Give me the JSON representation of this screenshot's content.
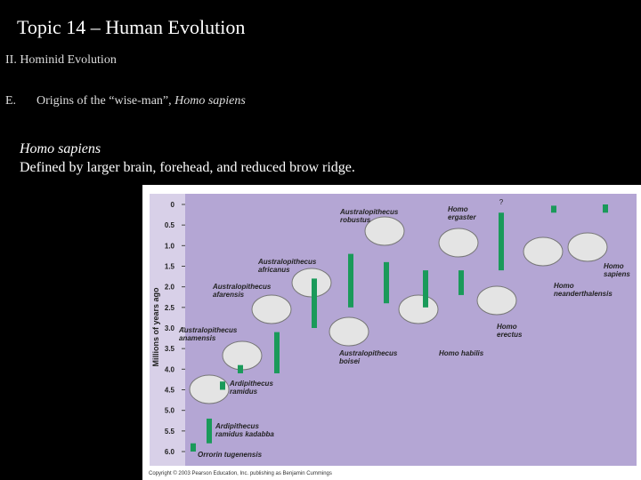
{
  "slide": {
    "title": "Topic 14 – Human Evolution",
    "section": "II. Hominid Evolution",
    "item_marker": "E.",
    "item_text": "Origins of the “wise-man”,",
    "item_italic": "Homo sapiens",
    "body_italic": "Homo sapiens",
    "body_text": "Defined by larger brain, forehead, and reduced brow ridge."
  },
  "figure": {
    "y_label": "Millions of years ago",
    "ylim": [
      0,
      6.0
    ],
    "yticks": [
      0,
      0.5,
      {
        "value": 1.0,
        "label": "1.0"
      },
      1.5,
      {
        "value": 2.0,
        "label": "2.0"
      },
      2.5,
      {
        "value": 3.0,
        "label": "3.0"
      },
      3.5,
      {
        "value": 4.0,
        "label": "4.0"
      },
      4.5,
      {
        "value": 5.0,
        "label": "5.0"
      },
      5.5,
      {
        "value": 6.0,
        "label": "6.0"
      }
    ],
    "bar_color": "#1a9a5a",
    "species": [
      {
        "name": "Orrorin tugenensis",
        "range": [
          5.8,
          6.0
        ]
      },
      {
        "name": "Ardipithecus ramidus kadabba",
        "range": [
          5.2,
          5.8
        ]
      },
      {
        "name": "Ardipithecus ramidus",
        "range": [
          4.3,
          4.5
        ]
      },
      {
        "name": "Australopithecus anamensis",
        "range": [
          3.9,
          4.1
        ]
      },
      {
        "name": "Australopithecus afarensis",
        "range": [
          3.1,
          4.1
        ]
      },
      {
        "name": "Australopithecus africanus",
        "range": [
          1.8,
          3.0
        ]
      },
      {
        "name": "Australopithecus boisei",
        "range": [
          1.2,
          2.5
        ]
      },
      {
        "name": "Australopithecus robustus",
        "range": [
          1.4,
          2.4
        ]
      },
      {
        "name": "Homo habilis",
        "range": [
          1.6,
          2.5
        ]
      },
      {
        "name": "Homo ergaster",
        "range": [
          1.6,
          2.2
        ]
      },
      {
        "name": "Homo erectus",
        "range": [
          0.2,
          1.6
        ]
      },
      {
        "name": "Homo neanderthalensis",
        "range": [
          0.03,
          0.2
        ]
      },
      {
        "name": "Homo sapiens",
        "range": [
          0,
          0.2
        ]
      }
    ],
    "unknown_mark": "?",
    "copyright": "Copyright © 2003 Pearson Education, Inc. publishing as Benjamin Cummings"
  }
}
